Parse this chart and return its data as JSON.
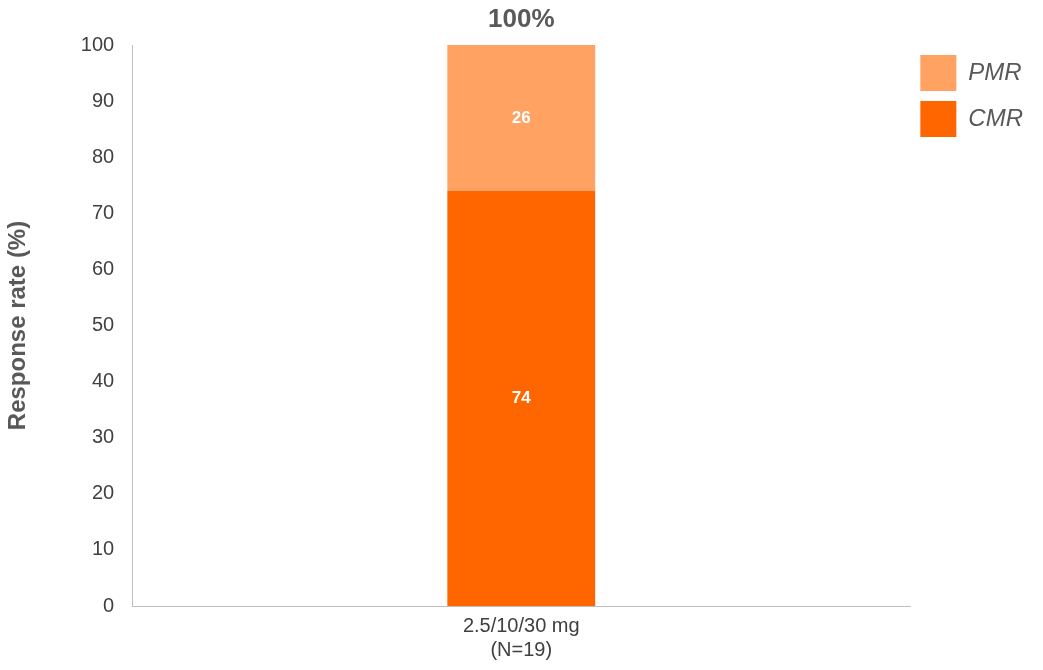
{
  "chart_data": {
    "type": "bar",
    "stacked": true,
    "categories": [
      "2.5/10/30 mg\n(N=19)"
    ],
    "series": [
      {
        "name": "CMR",
        "color": "#ff6600",
        "values": [
          74
        ]
      },
      {
        "name": "PMR",
        "color": "#ffa262",
        "values": [
          26
        ]
      }
    ],
    "ylabel": "Response rate (%)",
    "ylim": [
      0,
      100
    ],
    "yticks": [
      0,
      10,
      20,
      30,
      40,
      50,
      60,
      70,
      80,
      90,
      100
    ],
    "grid": false,
    "legend": "top right",
    "data_labels": true,
    "totals": [
      "100%"
    ]
  }
}
